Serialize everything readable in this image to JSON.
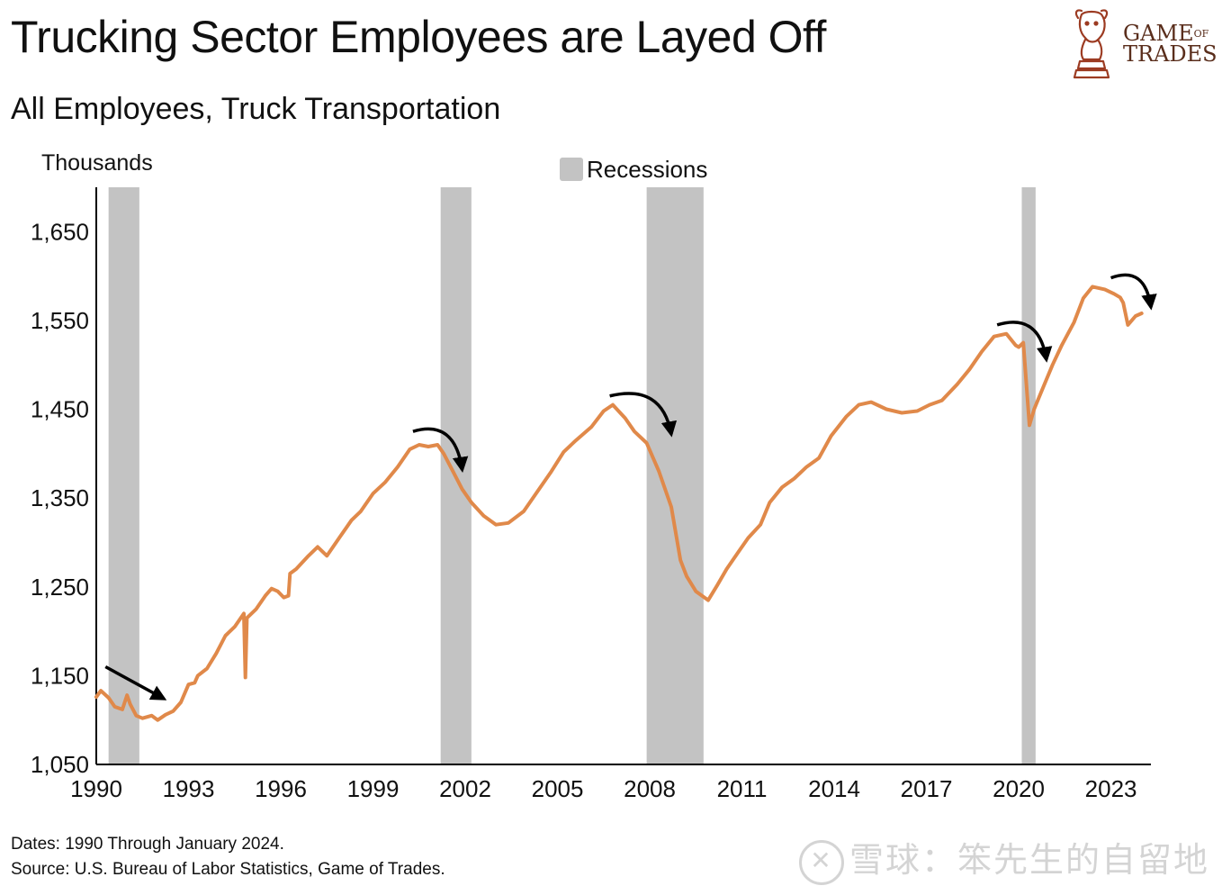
{
  "title": "Trucking Sector Employees are Layed Off",
  "subtitle": "All Employees, Truck Transportation",
  "logo": {
    "line1": "GAME",
    "of": "OF",
    "line2": "TRADES",
    "icon": "bull-knight-icon"
  },
  "notes": {
    "dates": "Dates: 1990 Through January 2024.",
    "source": "Source: U.S. Bureau of Labor Statistics, Game of Trades."
  },
  "watermark": {
    "badge": "✕",
    "text": "雪球：笨先生的自留地"
  },
  "colors": {
    "line": "#e0894a",
    "recession": "#c3c3c3",
    "arrow": "#000000"
  },
  "chart_data": {
    "type": "line",
    "ylabel": "Thousands",
    "legend": {
      "recession_label": "Recessions",
      "placement": "top-center"
    },
    "xlim": [
      1990,
      2024.3
    ],
    "ylim": [
      1050,
      1700
    ],
    "xticks": [
      1990,
      1993,
      1996,
      1999,
      2002,
      2005,
      2008,
      2011,
      2014,
      2017,
      2020,
      2023
    ],
    "xtick_labels": [
      "1990",
      "1993",
      "1996",
      "1999",
      "2002",
      "2005",
      "2008",
      "2011",
      "2014",
      "2017",
      "2020",
      "2023"
    ],
    "yticks": [
      1050,
      1150,
      1250,
      1350,
      1450,
      1550,
      1650
    ],
    "ytick_labels": [
      "1,050",
      "1,150",
      "1,250",
      "1,350",
      "1,450",
      "1,550",
      "1,650"
    ],
    "recessions": [
      [
        1990.4,
        1991.4
      ],
      [
        2001.2,
        2002.2
      ],
      [
        2007.9,
        2009.75
      ],
      [
        2020.1,
        2020.55
      ]
    ],
    "series": [
      {
        "name": "All Employees, Truck Transportation",
        "x": [
          1990.0,
          1990.15,
          1990.4,
          1990.6,
          1990.85,
          1991.0,
          1991.1,
          1991.3,
          1991.5,
          1991.8,
          1992.0,
          1992.25,
          1992.5,
          1992.75,
          1993.0,
          1993.2,
          1993.3,
          1993.6,
          1993.9,
          1994.2,
          1994.5,
          1994.8,
          1994.85,
          1994.9,
          1995.2,
          1995.5,
          1995.7,
          1995.9,
          1996.1,
          1996.25,
          1996.3,
          1996.5,
          1996.9,
          1997.2,
          1997.5,
          1997.9,
          1998.3,
          1998.6,
          1999.0,
          1999.4,
          1999.8,
          2000.2,
          2000.5,
          2000.8,
          2001.1,
          2001.3,
          2001.6,
          2001.9,
          2002.2,
          2002.6,
          2003.0,
          2003.4,
          2003.9,
          2004.3,
          2004.8,
          2005.2,
          2005.6,
          2006.1,
          2006.5,
          2006.8,
          2007.2,
          2007.5,
          2007.9,
          2008.3,
          2008.7,
          2009.0,
          2009.2,
          2009.5,
          2009.9,
          2010.2,
          2010.5,
          2010.9,
          2011.2,
          2011.6,
          2011.9,
          2012.3,
          2012.7,
          2013.1,
          2013.5,
          2013.9,
          2014.4,
          2014.8,
          2015.2,
          2015.7,
          2016.2,
          2016.7,
          2017.1,
          2017.5,
          2018.0,
          2018.4,
          2018.8,
          2019.2,
          2019.6,
          2019.9,
          2020.0,
          2020.15,
          2020.35,
          2020.5,
          2020.8,
          2021.1,
          2021.4,
          2021.8,
          2022.1,
          2022.4,
          2022.8,
          2023.1,
          2023.3,
          2023.4,
          2023.55,
          2023.8,
          2024.0
        ],
        "values": [
          1126,
          1133,
          1125,
          1115,
          1112,
          1128,
          1118,
          1105,
          1102,
          1105,
          1100,
          1106,
          1110,
          1120,
          1140,
          1142,
          1150,
          1158,
          1175,
          1195,
          1205,
          1220,
          1148,
          1215,
          1225,
          1240,
          1248,
          1245,
          1238,
          1240,
          1265,
          1270,
          1285,
          1295,
          1285,
          1305,
          1325,
          1335,
          1355,
          1368,
          1385,
          1405,
          1410,
          1408,
          1410,
          1400,
          1380,
          1360,
          1345,
          1330,
          1320,
          1322,
          1335,
          1355,
          1380,
          1402,
          1415,
          1430,
          1448,
          1455,
          1440,
          1425,
          1412,
          1380,
          1340,
          1280,
          1262,
          1245,
          1235,
          1252,
          1270,
          1290,
          1305,
          1320,
          1345,
          1362,
          1372,
          1385,
          1395,
          1420,
          1442,
          1455,
          1458,
          1450,
          1446,
          1448,
          1455,
          1460,
          1478,
          1495,
          1515,
          1532,
          1535,
          1522,
          1520,
          1525,
          1432,
          1450,
          1475,
          1500,
          1522,
          1548,
          1575,
          1588,
          1585,
          1580,
          1576,
          1570,
          1545,
          1555,
          1558
        ]
      }
    ],
    "annotations": [
      {
        "type": "arrow",
        "shape": "straight",
        "from": [
          1990.3,
          1160
        ],
        "to": [
          1992.2,
          1124
        ]
      },
      {
        "type": "arrow",
        "shape": "curved",
        "from": [
          2000.3,
          1425
        ],
        "to": [
          2001.9,
          1382
        ]
      },
      {
        "type": "arrow",
        "shape": "curved",
        "from": [
          2006.7,
          1465
        ],
        "to": [
          2008.7,
          1422
        ]
      },
      {
        "type": "arrow",
        "shape": "curved",
        "from": [
          2019.3,
          1545
        ],
        "to": [
          2020.9,
          1506
        ]
      },
      {
        "type": "arrow",
        "shape": "curved",
        "from": [
          2023.0,
          1598
        ],
        "to": [
          2024.3,
          1565
        ]
      }
    ]
  }
}
